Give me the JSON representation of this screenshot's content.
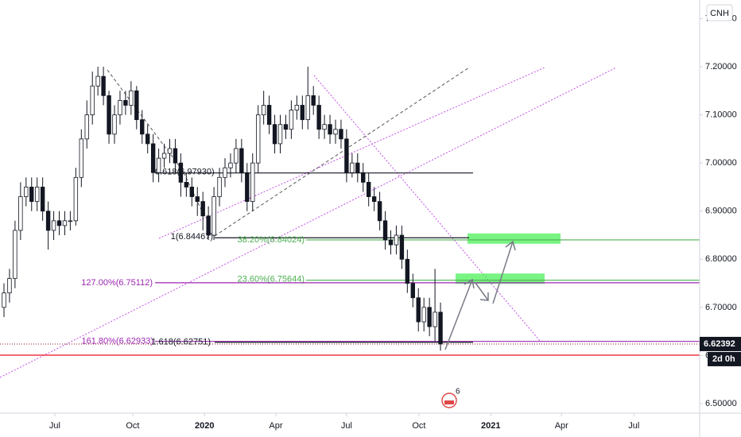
{
  "chart_data": {
    "type": "candlestick",
    "symbol": "CNH",
    "open": [
      6.7,
      6.73,
      6.76,
      6.86,
      6.93,
      6.95,
      6.92,
      6.95,
      6.9,
      6.86,
      6.88,
      6.87,
      6.88,
      6.88,
      6.97,
      7.05,
      7.1,
      7.16,
      7.18,
      7.14,
      7.06,
      7.1,
      7.13,
      7.12,
      7.15,
      7.09,
      7.06,
      7.04,
      6.98,
      7.01,
      7.02,
      7.03,
      7.0,
      6.96,
      6.95,
      6.93,
      6.92,
      6.89,
      6.85,
      6.93,
      6.97,
      6.99,
      7.0,
      7.03,
      6.98,
      6.92,
      7.0,
      7.1,
      7.12,
      7.08,
      7.04,
      7.08,
      7.07,
      7.11,
      7.12,
      7.09,
      7.14,
      7.12,
      7.07,
      7.08,
      7.06,
      7.07,
      7.05,
      6.98,
      7.0,
      6.98,
      6.96,
      6.93,
      6.92,
      6.88,
      6.84,
      6.83,
      6.85,
      6.8,
      6.75,
      6.72,
      6.67,
      6.7,
      6.66,
      6.69
    ],
    "high": [
      6.75,
      6.78,
      6.88,
      6.96,
      6.97,
      6.97,
      6.97,
      6.97,
      6.92,
      6.9,
      6.9,
      6.9,
      6.9,
      6.99,
      7.07,
      7.13,
      7.19,
      7.2,
      7.2,
      7.15,
      7.12,
      7.15,
      7.15,
      7.17,
      7.16,
      7.11,
      7.08,
      7.06,
      7.03,
      7.04,
      7.05,
      7.05,
      7.02,
      6.98,
      6.97,
      6.95,
      6.94,
      6.91,
      6.95,
      6.99,
      7.01,
      7.02,
      7.05,
      7.05,
      7.0,
      7.02,
      7.12,
      7.15,
      7.14,
      7.1,
      7.1,
      7.1,
      7.13,
      7.14,
      7.14,
      7.2,
      7.16,
      7.14,
      7.1,
      7.1,
      7.09,
      7.09,
      7.07,
      7.02,
      7.02,
      7.0,
      6.98,
      6.95,
      6.94,
      6.9,
      6.86,
      6.87,
      6.87,
      6.82,
      6.77,
      6.74,
      6.72,
      6.72,
      6.78,
      6.71
    ],
    "low": [
      6.68,
      6.71,
      6.74,
      6.84,
      6.91,
      6.9,
      6.9,
      6.88,
      6.82,
      6.84,
      6.85,
      6.85,
      6.86,
      6.87,
      6.95,
      7.03,
      7.08,
      7.14,
      7.12,
      7.04,
      7.04,
      7.08,
      7.1,
      7.1,
      7.07,
      7.04,
      7.02,
      6.96,
      6.96,
      6.99,
      7.0,
      6.98,
      6.93,
      6.93,
      6.91,
      6.89,
      6.86,
      6.84,
      6.84,
      6.91,
      6.95,
      6.97,
      6.98,
      6.96,
      6.9,
      6.9,
      6.98,
      7.08,
      7.06,
      7.02,
      7.02,
      7.05,
      7.05,
      7.09,
      7.07,
      7.07,
      7.1,
      7.05,
      7.05,
      7.04,
      7.04,
      7.03,
      6.96,
      6.97,
      6.96,
      6.94,
      6.91,
      6.9,
      6.86,
      6.82,
      6.81,
      6.81,
      6.78,
      6.73,
      6.7,
      6.65,
      6.65,
      6.64,
      6.63,
      6.61
    ],
    "close": [
      6.73,
      6.76,
      6.86,
      6.93,
      6.95,
      6.92,
      6.95,
      6.9,
      6.86,
      6.88,
      6.87,
      6.88,
      6.88,
      6.97,
      7.05,
      7.1,
      7.16,
      7.18,
      7.14,
      7.06,
      7.1,
      7.13,
      7.12,
      7.15,
      7.09,
      7.06,
      7.04,
      6.98,
      7.01,
      7.02,
      7.03,
      7.0,
      6.96,
      6.95,
      6.93,
      6.92,
      6.89,
      6.85,
      6.93,
      6.97,
      6.99,
      7.0,
      7.03,
      6.98,
      6.92,
      7.0,
      7.1,
      7.12,
      7.08,
      7.04,
      7.08,
      7.07,
      7.11,
      7.12,
      7.09,
      7.14,
      7.12,
      7.07,
      7.08,
      7.06,
      7.07,
      7.05,
      6.98,
      7.0,
      6.98,
      6.96,
      6.93,
      6.92,
      6.88,
      6.84,
      6.83,
      6.85,
      6.8,
      6.75,
      6.72,
      6.67,
      6.7,
      6.66,
      6.69,
      6.62392
    ],
    "xlim": [
      -0.72,
      125.9
    ],
    "xticks": [
      {
        "value": 9.2,
        "label": "Jul"
      },
      {
        "value": 23.3,
        "label": "Oct"
      },
      {
        "value": 36.3,
        "label": "2020"
      },
      {
        "value": 49.2,
        "label": "Apr"
      },
      {
        "value": 62.0,
        "label": "Jul"
      },
      {
        "value": 75.1,
        "label": "Oct"
      },
      {
        "value": 88.1,
        "label": "2021"
      },
      {
        "value": 100.9,
        "label": "Apr"
      },
      {
        "value": 114.0,
        "label": "Jul"
      }
    ],
    "ylim": [
      6.4802,
      7.3387
    ],
    "yticks": [
      {
        "value": 6.5,
        "label": "6.50000"
      },
      {
        "value": 6.6,
        "label": "6.60000"
      },
      {
        "value": 6.7,
        "label": "6.70000"
      },
      {
        "value": 6.8,
        "label": "6.80000"
      },
      {
        "value": 6.9,
        "label": "6.90000"
      },
      {
        "value": 7.0,
        "label": "7.00000"
      },
      {
        "value": 7.1,
        "label": "7.10000"
      },
      {
        "value": 7.2,
        "label": "7.20000"
      },
      {
        "value": 7.3,
        "label": "7.30000"
      }
    ],
    "levels": [
      {
        "label": "0.618(6.97930)",
        "value": 6.9793,
        "color": "#131722"
      },
      {
        "label": "1(6.84467)",
        "value": 6.84467,
        "color": "#131722"
      },
      {
        "label": "38.20%(6.84024)",
        "value": 6.84024,
        "color": "#4caf50"
      },
      {
        "label": "23.60%(6.75644)",
        "value": 6.75644,
        "color": "#4caf50"
      },
      {
        "label": "127.00%(6.75112)",
        "value": 6.75112,
        "color": "#9c27b0"
      },
      {
        "label": "161.80%(6.62933)",
        "value": 6.62933,
        "color": "#9c27b0"
      },
      {
        "label": "1.618(6.62751)",
        "value": 6.62751,
        "color": "#131722"
      }
    ],
    "zones": [
      {
        "from": 6.8322,
        "to": 6.8537
      },
      {
        "from": 6.7489,
        "to": 6.7704
      }
    ],
    "support_line": {
      "value": 6.6007,
      "color": "#f23645"
    },
    "last_price": 6.62392,
    "countdown": "2d 0h",
    "events_badge": "6"
  }
}
